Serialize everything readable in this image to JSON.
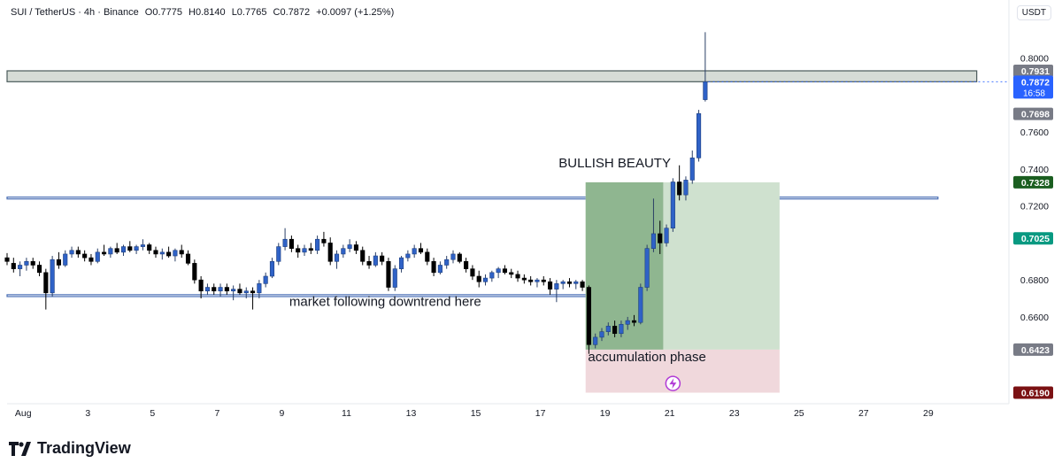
{
  "header": {
    "symbol": "SUI / TetherUS · 4h · Binance",
    "open": "O0.7775",
    "high": "H0.8140",
    "low": "L0.7765",
    "close": "C0.7872",
    "change": "+0.0097 (+1.25%)"
  },
  "currency_button": "USDT",
  "brand": {
    "name": "TradingView"
  },
  "colors": {
    "up": "#2f62c7",
    "down": "#000000",
    "accent": "#2962ff"
  },
  "chart_data": {
    "type": "candlestick",
    "ylim": [
      0.614,
      0.818
    ],
    "xlim": [
      -0.5,
      29.4
    ],
    "y_ticks": [
      "0.6600",
      "0.6800",
      "0.7200",
      "0.7400",
      "0.7600",
      "0.8000"
    ],
    "x_ticks": [
      {
        "label": "Aug",
        "x": 0
      },
      {
        "label": "3",
        "x": 2
      },
      {
        "label": "5",
        "x": 4
      },
      {
        "label": "7",
        "x": 6
      },
      {
        "label": "9",
        "x": 8
      },
      {
        "label": "11",
        "x": 10
      },
      {
        "label": "13",
        "x": 12
      },
      {
        "label": "15",
        "x": 14
      },
      {
        "label": "17",
        "x": 16
      },
      {
        "label": "19",
        "x": 18
      },
      {
        "label": "21",
        "x": 20
      },
      {
        "label": "23",
        "x": 22
      },
      {
        "label": "25",
        "x": 24
      },
      {
        "label": "27",
        "x": 26
      },
      {
        "label": "29",
        "x": 28
      }
    ],
    "price_badges": [
      {
        "label": "0.7931",
        "value": 0.7931,
        "color": "#787b86"
      },
      {
        "label": "0.7872",
        "sub": "16:58",
        "value": 0.7872,
        "color": "#2962ff"
      },
      {
        "label": "0.7698",
        "value": 0.7698,
        "color": "#787b86"
      },
      {
        "label": "0.7328",
        "value": 0.7328,
        "color": "#1b5e20"
      },
      {
        "label": "0.7025",
        "value": 0.7025,
        "color": "#089981"
      },
      {
        "label": "0.6423",
        "value": 0.6423,
        "color": "#787b86"
      },
      {
        "label": "0.6190",
        "value": 0.619,
        "color": "#7b1113"
      }
    ],
    "zones": [
      {
        "kind": "resistance-box",
        "y0": 0.7872,
        "y1": 0.7931,
        "x0": -0.5,
        "x1": 29.5,
        "fill": "#d6dcd6",
        "stroke": "#4a5a5a"
      },
      {
        "kind": "support-line",
        "y0": 0.7238,
        "y1": 0.7248,
        "x0": -0.5,
        "x1": 28.3,
        "fill": "#ffffff",
        "stroke": "#4a6fb5"
      },
      {
        "kind": "support-line",
        "y0": 0.671,
        "y1": 0.672,
        "x0": -0.5,
        "x1": 20.5,
        "fill": "#ffffff",
        "stroke": "#4a6fb5"
      },
      {
        "kind": "target-zone",
        "y0": 0.6423,
        "y1": 0.7328,
        "x0": 17.4,
        "x1": 23.4,
        "fill": "#cfe1cf",
        "stroke": "none"
      },
      {
        "kind": "target-zone-filled",
        "y0": 0.6423,
        "y1": 0.7328,
        "x0": 17.4,
        "x1": 19.8,
        "fill": "#8fb690",
        "stroke": "none"
      },
      {
        "kind": "stop-zone",
        "y0": 0.619,
        "y1": 0.6423,
        "x0": 17.4,
        "x1": 23.4,
        "fill": "#f0d8dc",
        "stroke": "none"
      }
    ],
    "annotations": [
      {
        "text": "BULLISH BEAUTY",
        "x": 18.3,
        "y": 0.741
      },
      {
        "text": "market following downtrend here",
        "x": 11.2,
        "y": 0.666
      },
      {
        "text": "accumulation phase",
        "x": 19.3,
        "y": 0.636
      }
    ],
    "candles": [
      {
        "x": -0.5,
        "o": 0.692,
        "h": 0.6945,
        "l": 0.688,
        "c": 0.69
      },
      {
        "x": -0.3,
        "o": 0.689,
        "h": 0.692,
        "l": 0.684,
        "c": 0.686
      },
      {
        "x": -0.1,
        "o": 0.686,
        "h": 0.69,
        "l": 0.682,
        "c": 0.688
      },
      {
        "x": 0.1,
        "o": 0.688,
        "h": 0.692,
        "l": 0.685,
        "c": 0.69
      },
      {
        "x": 0.3,
        "o": 0.69,
        "h": 0.692,
        "l": 0.686,
        "c": 0.688
      },
      {
        "x": 0.5,
        "o": 0.688,
        "h": 0.69,
        "l": 0.682,
        "c": 0.684
      },
      {
        "x": 0.7,
        "o": 0.684,
        "h": 0.686,
        "l": 0.664,
        "c": 0.673
      },
      {
        "x": 0.9,
        "o": 0.673,
        "h": 0.693,
        "l": 0.671,
        "c": 0.691
      },
      {
        "x": 1.1,
        "o": 0.691,
        "h": 0.695,
        "l": 0.686,
        "c": 0.688
      },
      {
        "x": 1.3,
        "o": 0.688,
        "h": 0.696,
        "l": 0.687,
        "c": 0.694
      },
      {
        "x": 1.5,
        "o": 0.694,
        "h": 0.698,
        "l": 0.692,
        "c": 0.696
      },
      {
        "x": 1.7,
        "o": 0.696,
        "h": 0.698,
        "l": 0.692,
        "c": 0.694
      },
      {
        "x": 1.9,
        "o": 0.694,
        "h": 0.696,
        "l": 0.69,
        "c": 0.692
      },
      {
        "x": 2.1,
        "o": 0.692,
        "h": 0.694,
        "l": 0.688,
        "c": 0.69
      },
      {
        "x": 2.3,
        "o": 0.69,
        "h": 0.697,
        "l": 0.689,
        "c": 0.695
      },
      {
        "x": 2.5,
        "o": 0.695,
        "h": 0.699,
        "l": 0.693,
        "c": 0.694
      },
      {
        "x": 2.7,
        "o": 0.694,
        "h": 0.698,
        "l": 0.692,
        "c": 0.697
      },
      {
        "x": 2.9,
        "o": 0.697,
        "h": 0.7,
        "l": 0.694,
        "c": 0.695
      },
      {
        "x": 3.1,
        "o": 0.695,
        "h": 0.699,
        "l": 0.693,
        "c": 0.698
      },
      {
        "x": 3.3,
        "o": 0.698,
        "h": 0.701,
        "l": 0.695,
        "c": 0.696
      },
      {
        "x": 3.5,
        "o": 0.696,
        "h": 0.699,
        "l": 0.694,
        "c": 0.698
      },
      {
        "x": 3.7,
        "o": 0.698,
        "h": 0.702,
        "l": 0.696,
        "c": 0.699
      },
      {
        "x": 3.9,
        "o": 0.699,
        "h": 0.7,
        "l": 0.694,
        "c": 0.696
      },
      {
        "x": 4.1,
        "o": 0.696,
        "h": 0.698,
        "l": 0.692,
        "c": 0.694
      },
      {
        "x": 4.3,
        "o": 0.694,
        "h": 0.697,
        "l": 0.691,
        "c": 0.695
      },
      {
        "x": 4.5,
        "o": 0.695,
        "h": 0.698,
        "l": 0.692,
        "c": 0.693
      },
      {
        "x": 4.7,
        "o": 0.693,
        "h": 0.697,
        "l": 0.69,
        "c": 0.696
      },
      {
        "x": 4.9,
        "o": 0.696,
        "h": 0.699,
        "l": 0.692,
        "c": 0.694
      },
      {
        "x": 5.1,
        "o": 0.694,
        "h": 0.696,
        "l": 0.688,
        "c": 0.689
      },
      {
        "x": 5.3,
        "o": 0.689,
        "h": 0.691,
        "l": 0.678,
        "c": 0.68
      },
      {
        "x": 5.5,
        "o": 0.68,
        "h": 0.682,
        "l": 0.67,
        "c": 0.674
      },
      {
        "x": 5.7,
        "o": 0.674,
        "h": 0.678,
        "l": 0.672,
        "c": 0.676
      },
      {
        "x": 5.9,
        "o": 0.676,
        "h": 0.678,
        "l": 0.672,
        "c": 0.674
      },
      {
        "x": 6.1,
        "o": 0.674,
        "h": 0.678,
        "l": 0.671,
        "c": 0.676
      },
      {
        "x": 6.3,
        "o": 0.676,
        "h": 0.678,
        "l": 0.672,
        "c": 0.674
      },
      {
        "x": 6.5,
        "o": 0.674,
        "h": 0.677,
        "l": 0.669,
        "c": 0.675
      },
      {
        "x": 6.7,
        "o": 0.675,
        "h": 0.678,
        "l": 0.672,
        "c": 0.673
      },
      {
        "x": 6.9,
        "o": 0.673,
        "h": 0.676,
        "l": 0.67,
        "c": 0.674
      },
      {
        "x": 7.1,
        "o": 0.674,
        "h": 0.676,
        "l": 0.664,
        "c": 0.673
      },
      {
        "x": 7.3,
        "o": 0.673,
        "h": 0.68,
        "l": 0.67,
        "c": 0.678
      },
      {
        "x": 7.5,
        "o": 0.678,
        "h": 0.684,
        "l": 0.676,
        "c": 0.682
      },
      {
        "x": 7.7,
        "o": 0.682,
        "h": 0.692,
        "l": 0.681,
        "c": 0.69
      },
      {
        "x": 7.9,
        "o": 0.69,
        "h": 0.7,
        "l": 0.688,
        "c": 0.698
      },
      {
        "x": 8.1,
        "o": 0.698,
        "h": 0.708,
        "l": 0.696,
        "c": 0.702
      },
      {
        "x": 8.3,
        "o": 0.702,
        "h": 0.704,
        "l": 0.695,
        "c": 0.697
      },
      {
        "x": 8.5,
        "o": 0.697,
        "h": 0.699,
        "l": 0.692,
        "c": 0.695
      },
      {
        "x": 8.7,
        "o": 0.695,
        "h": 0.699,
        "l": 0.693,
        "c": 0.697
      },
      {
        "x": 8.9,
        "o": 0.697,
        "h": 0.7,
        "l": 0.694,
        "c": 0.696
      },
      {
        "x": 9.1,
        "o": 0.696,
        "h": 0.704,
        "l": 0.694,
        "c": 0.702
      },
      {
        "x": 9.3,
        "o": 0.702,
        "h": 0.706,
        "l": 0.698,
        "c": 0.7
      },
      {
        "x": 9.5,
        "o": 0.7,
        "h": 0.703,
        "l": 0.688,
        "c": 0.69
      },
      {
        "x": 9.7,
        "o": 0.69,
        "h": 0.696,
        "l": 0.686,
        "c": 0.694
      },
      {
        "x": 9.9,
        "o": 0.694,
        "h": 0.699,
        "l": 0.692,
        "c": 0.697
      },
      {
        "x": 10.1,
        "o": 0.697,
        "h": 0.702,
        "l": 0.695,
        "c": 0.699
      },
      {
        "x": 10.3,
        "o": 0.699,
        "h": 0.701,
        "l": 0.694,
        "c": 0.696
      },
      {
        "x": 10.5,
        "o": 0.696,
        "h": 0.698,
        "l": 0.688,
        "c": 0.69
      },
      {
        "x": 10.7,
        "o": 0.69,
        "h": 0.693,
        "l": 0.686,
        "c": 0.688
      },
      {
        "x": 10.9,
        "o": 0.688,
        "h": 0.695,
        "l": 0.687,
        "c": 0.693
      },
      {
        "x": 11.1,
        "o": 0.693,
        "h": 0.695,
        "l": 0.688,
        "c": 0.69
      },
      {
        "x": 11.3,
        "o": 0.69,
        "h": 0.692,
        "l": 0.674,
        "c": 0.676
      },
      {
        "x": 11.5,
        "o": 0.676,
        "h": 0.688,
        "l": 0.674,
        "c": 0.686
      },
      {
        "x": 11.7,
        "o": 0.686,
        "h": 0.693,
        "l": 0.684,
        "c": 0.692
      },
      {
        "x": 11.9,
        "o": 0.692,
        "h": 0.696,
        "l": 0.69,
        "c": 0.694
      },
      {
        "x": 12.1,
        "o": 0.694,
        "h": 0.699,
        "l": 0.692,
        "c": 0.697
      },
      {
        "x": 12.3,
        "o": 0.697,
        "h": 0.7,
        "l": 0.694,
        "c": 0.695
      },
      {
        "x": 12.5,
        "o": 0.695,
        "h": 0.697,
        "l": 0.688,
        "c": 0.69
      },
      {
        "x": 12.7,
        "o": 0.69,
        "h": 0.692,
        "l": 0.682,
        "c": 0.684
      },
      {
        "x": 12.9,
        "o": 0.684,
        "h": 0.69,
        "l": 0.683,
        "c": 0.688
      },
      {
        "x": 13.1,
        "o": 0.688,
        "h": 0.693,
        "l": 0.686,
        "c": 0.691
      },
      {
        "x": 13.3,
        "o": 0.691,
        "h": 0.696,
        "l": 0.689,
        "c": 0.694
      },
      {
        "x": 13.5,
        "o": 0.694,
        "h": 0.695,
        "l": 0.689,
        "c": 0.69
      },
      {
        "x": 13.7,
        "o": 0.69,
        "h": 0.692,
        "l": 0.684,
        "c": 0.686
      },
      {
        "x": 13.9,
        "o": 0.686,
        "h": 0.688,
        "l": 0.68,
        "c": 0.682
      },
      {
        "x": 14.1,
        "o": 0.682,
        "h": 0.685,
        "l": 0.676,
        "c": 0.679
      },
      {
        "x": 14.3,
        "o": 0.679,
        "h": 0.683,
        "l": 0.677,
        "c": 0.681
      },
      {
        "x": 14.5,
        "o": 0.681,
        "h": 0.685,
        "l": 0.679,
        "c": 0.684
      },
      {
        "x": 14.7,
        "o": 0.684,
        "h": 0.687,
        "l": 0.681,
        "c": 0.686
      },
      {
        "x": 14.9,
        "o": 0.686,
        "h": 0.688,
        "l": 0.683,
        "c": 0.684
      },
      {
        "x": 15.1,
        "o": 0.684,
        "h": 0.686,
        "l": 0.681,
        "c": 0.683
      },
      {
        "x": 15.3,
        "o": 0.683,
        "h": 0.685,
        "l": 0.679,
        "c": 0.681
      },
      {
        "x": 15.5,
        "o": 0.681,
        "h": 0.683,
        "l": 0.678,
        "c": 0.68
      },
      {
        "x": 15.7,
        "o": 0.68,
        "h": 0.682,
        "l": 0.677,
        "c": 0.679
      },
      {
        "x": 15.9,
        "o": 0.679,
        "h": 0.681,
        "l": 0.676,
        "c": 0.68
      },
      {
        "x": 16.1,
        "o": 0.68,
        "h": 0.682,
        "l": 0.677,
        "c": 0.679
      },
      {
        "x": 16.3,
        "o": 0.679,
        "h": 0.681,
        "l": 0.672,
        "c": 0.675
      },
      {
        "x": 16.5,
        "o": 0.675,
        "h": 0.68,
        "l": 0.668,
        "c": 0.678
      },
      {
        "x": 16.7,
        "o": 0.678,
        "h": 0.68,
        "l": 0.675,
        "c": 0.679
      },
      {
        "x": 16.9,
        "o": 0.679,
        "h": 0.681,
        "l": 0.676,
        "c": 0.678
      },
      {
        "x": 17.1,
        "o": 0.678,
        "h": 0.68,
        "l": 0.675,
        "c": 0.679
      },
      {
        "x": 17.3,
        "o": 0.679,
        "h": 0.68,
        "l": 0.674,
        "c": 0.676
      },
      {
        "x": 17.5,
        "o": 0.676,
        "h": 0.677,
        "l": 0.64,
        "c": 0.645
      },
      {
        "x": 17.7,
        "o": 0.645,
        "h": 0.651,
        "l": 0.643,
        "c": 0.649
      },
      {
        "x": 17.9,
        "o": 0.649,
        "h": 0.654,
        "l": 0.647,
        "c": 0.652
      },
      {
        "x": 18.1,
        "o": 0.652,
        "h": 0.657,
        "l": 0.65,
        "c": 0.655
      },
      {
        "x": 18.3,
        "o": 0.655,
        "h": 0.658,
        "l": 0.649,
        "c": 0.651
      },
      {
        "x": 18.5,
        "o": 0.651,
        "h": 0.658,
        "l": 0.649,
        "c": 0.656
      },
      {
        "x": 18.7,
        "o": 0.656,
        "h": 0.66,
        "l": 0.653,
        "c": 0.658
      },
      {
        "x": 18.9,
        "o": 0.658,
        "h": 0.661,
        "l": 0.655,
        "c": 0.657
      },
      {
        "x": 19.1,
        "o": 0.657,
        "h": 0.678,
        "l": 0.656,
        "c": 0.676
      },
      {
        "x": 19.3,
        "o": 0.676,
        "h": 0.699,
        "l": 0.674,
        "c": 0.697
      },
      {
        "x": 19.5,
        "o": 0.697,
        "h": 0.724,
        "l": 0.695,
        "c": 0.705
      },
      {
        "x": 19.7,
        "o": 0.705,
        "h": 0.712,
        "l": 0.694,
        "c": 0.7
      },
      {
        "x": 19.9,
        "o": 0.7,
        "h": 0.71,
        "l": 0.698,
        "c": 0.708
      },
      {
        "x": 20.1,
        "o": 0.708,
        "h": 0.735,
        "l": 0.706,
        "c": 0.733
      },
      {
        "x": 20.3,
        "o": 0.733,
        "h": 0.742,
        "l": 0.723,
        "c": 0.726
      },
      {
        "x": 20.5,
        "o": 0.726,
        "h": 0.736,
        "l": 0.723,
        "c": 0.734
      },
      {
        "x": 20.7,
        "o": 0.734,
        "h": 0.75,
        "l": 0.732,
        "c": 0.746
      },
      {
        "x": 20.9,
        "o": 0.746,
        "h": 0.772,
        "l": 0.744,
        "c": 0.77
      },
      {
        "x": 21.1,
        "o": 0.7775,
        "h": 0.814,
        "l": 0.7765,
        "c": 0.7872
      }
    ]
  }
}
